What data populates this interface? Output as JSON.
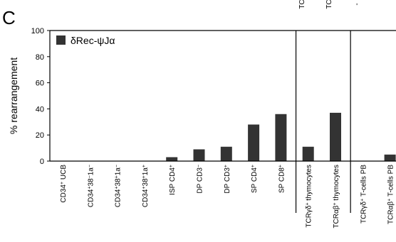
{
  "panel_label": "C",
  "colors": {
    "bar": "#333333",
    "axis": "#000000",
    "background": "#ffffff"
  },
  "chart_data": {
    "type": "bar",
    "title": "",
    "xlabel": "",
    "ylabel": "% rearrangement",
    "ylim": [
      0,
      100
    ],
    "yticks": [
      0,
      20,
      40,
      60,
      80,
      100
    ],
    "grid": false,
    "legend_position": "top-left",
    "series": [
      {
        "name": "δRec-ψJα",
        "values": [
          0,
          0,
          0,
          0,
          3,
          9,
          11,
          28,
          36,
          11,
          37,
          0,
          5
        ]
      }
    ],
    "categories": [
      "CD34+ UCB",
      "CD34+38−1a−",
      "CD34+38+1a−",
      "CD34+38+1a+",
      "ISP CD4+",
      "DP CD3−",
      "DP CD3+",
      "SP CD4+",
      "SP CD8+",
      "TCRγδ+ thymocytes",
      "TCRαβ+ thymocytes",
      "TCRγδ+ T-cells PB",
      "TCRαβ+ T-cells PB"
    ],
    "group_separators_after_index": [
      8,
      10
    ],
    "top_cut_labels": [
      "TC",
      "TC",
      "-"
    ]
  }
}
